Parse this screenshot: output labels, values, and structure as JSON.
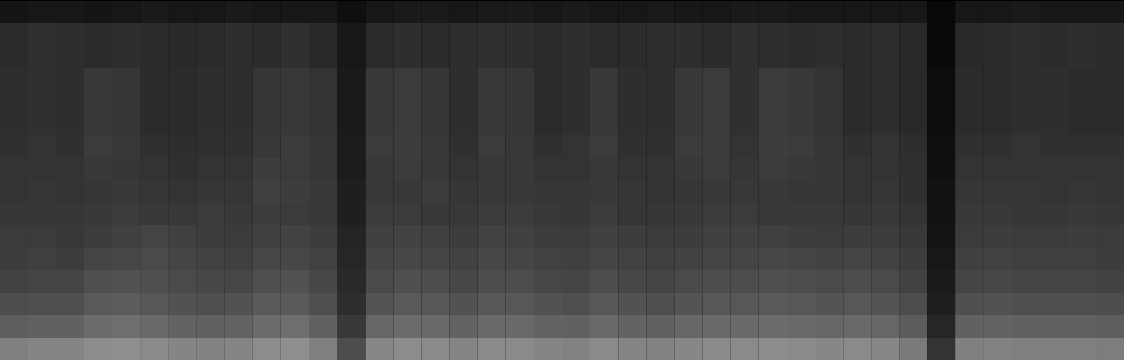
{
  "chart_data": {
    "type": "heatmap",
    "tick_labels": false,
    "zlim": [
      0,
      100
    ],
    "cells": [
      [
        8,
        9,
        9,
        8,
        9,
        10,
        9,
        9,
        10,
        9,
        9,
        9,
        6,
        9,
        10,
        10,
        9,
        10,
        10,
        9,
        10,
        9,
        9,
        10,
        9,
        9,
        10,
        10,
        9,
        9,
        9,
        9,
        9,
        3,
        9,
        9,
        10,
        9,
        9,
        9
      ],
      [
        17,
        19,
        18,
        17,
        18,
        17,
        16,
        17,
        18,
        17,
        19,
        16,
        9,
        17,
        18,
        17,
        18,
        19,
        18,
        17,
        18,
        17,
        17,
        18,
        18,
        17,
        19,
        18,
        17,
        18,
        17,
        18,
        16,
        4,
        16,
        17,
        18,
        17,
        18,
        17
      ],
      [
        17,
        19,
        18,
        17,
        18,
        17,
        16,
        17,
        18,
        17,
        19,
        16,
        9,
        17,
        18,
        17,
        18,
        19,
        18,
        17,
        18,
        17,
        17,
        18,
        18,
        17,
        19,
        18,
        17,
        18,
        17,
        18,
        16,
        4,
        16,
        17,
        18,
        17,
        18,
        17
      ],
      [
        18,
        19,
        18,
        22,
        21,
        17,
        17,
        18,
        18,
        21,
        22,
        20,
        10,
        22,
        23,
        21,
        18,
        22,
        21,
        17,
        18,
        22,
        18,
        18,
        22,
        23,
        19,
        23,
        22,
        20,
        17,
        18,
        16,
        5,
        17,
        17,
        18,
        18,
        17,
        17
      ],
      [
        18,
        19,
        18,
        22,
        21,
        17,
        17,
        18,
        18,
        21,
        22,
        20,
        10,
        22,
        23,
        21,
        18,
        22,
        21,
        17,
        18,
        22,
        18,
        18,
        22,
        23,
        19,
        23,
        22,
        20,
        17,
        18,
        16,
        5,
        17,
        17,
        18,
        18,
        17,
        17
      ],
      [
        18,
        19,
        18,
        22,
        21,
        17,
        17,
        18,
        18,
        21,
        22,
        20,
        10,
        22,
        23,
        21,
        18,
        22,
        21,
        17,
        18,
        22,
        18,
        18,
        22,
        23,
        19,
        23,
        22,
        20,
        17,
        18,
        16,
        5,
        17,
        17,
        18,
        18,
        17,
        17
      ],
      [
        19,
        20,
        19,
        23,
        22,
        19,
        18,
        19,
        19,
        22,
        23,
        21,
        11,
        23,
        24,
        22,
        19,
        23,
        22,
        19,
        20,
        23,
        19,
        19,
        23,
        24,
        20,
        24,
        23,
        21,
        19,
        20,
        18,
        6,
        19,
        19,
        20,
        19,
        19,
        19
      ],
      [
        20,
        20,
        20,
        22,
        21,
        20,
        19,
        20,
        20,
        24,
        23,
        21,
        11,
        22,
        23,
        22,
        20,
        22,
        22,
        20,
        20,
        22,
        20,
        20,
        22,
        23,
        21,
        23,
        22,
        21,
        20,
        20,
        19,
        6,
        20,
        20,
        20,
        20,
        20,
        20
      ],
      [
        20,
        21,
        20,
        21,
        22,
        21,
        20,
        21,
        21,
        25,
        24,
        22,
        12,
        22,
        22,
        23,
        21,
        22,
        22,
        21,
        21,
        22,
        21,
        20,
        21,
        22,
        22,
        22,
        21,
        21,
        20,
        21,
        19,
        7,
        21,
        21,
        21,
        20,
        21,
        20
      ],
      [
        21,
        21,
        21,
        22,
        23,
        22,
        22,
        23,
        22,
        24,
        23,
        22,
        12,
        23,
        23,
        22,
        22,
        23,
        23,
        22,
        21,
        23,
        21,
        21,
        22,
        23,
        23,
        22,
        22,
        22,
        21,
        22,
        20,
        7,
        22,
        22,
        21,
        21,
        22,
        21
      ],
      [
        23,
        23,
        22,
        24,
        25,
        27,
        25,
        24,
        23,
        25,
        26,
        24,
        14,
        25,
        26,
        25,
        24,
        26,
        25,
        24,
        23,
        25,
        24,
        23,
        24,
        25,
        25,
        25,
        24,
        23,
        24,
        24,
        22,
        8,
        23,
        24,
        23,
        23,
        24,
        23
      ],
      [
        24,
        25,
        24,
        27,
        28,
        29,
        27,
        26,
        25,
        28,
        28,
        26,
        15,
        27,
        28,
        27,
        26,
        28,
        27,
        26,
        25,
        27,
        26,
        25,
        26,
        27,
        27,
        28,
        27,
        26,
        27,
        26,
        24,
        9,
        25,
        26,
        25,
        25,
        25,
        24
      ],
      [
        26,
        27,
        27,
        31,
        32,
        31,
        29,
        28,
        28,
        31,
        32,
        28,
        16,
        29,
        31,
        30,
        28,
        30,
        30,
        28,
        27,
        30,
        28,
        27,
        29,
        30,
        30,
        31,
        30,
        29,
        30,
        29,
        26,
        10,
        27,
        28,
        27,
        27,
        27,
        26
      ],
      [
        30,
        31,
        31,
        35,
        36,
        34,
        32,
        31,
        32,
        35,
        35,
        31,
        18,
        33,
        35,
        34,
        32,
        34,
        34,
        32,
        31,
        34,
        32,
        31,
        33,
        34,
        34,
        35,
        34,
        33,
        34,
        33,
        30,
        12,
        31,
        32,
        31,
        31,
        31,
        30
      ],
      [
        37,
        38,
        38,
        42,
        43,
        41,
        39,
        38,
        39,
        42,
        43,
        38,
        22,
        40,
        42,
        41,
        39,
        41,
        41,
        39,
        38,
        41,
        39,
        38,
        40,
        41,
        41,
        42,
        41,
        40,
        41,
        40,
        36,
        15,
        38,
        39,
        38,
        38,
        38,
        37
      ],
      [
        50,
        52,
        52,
        55,
        56,
        54,
        52,
        51,
        52,
        55,
        56,
        50,
        30,
        53,
        55,
        54,
        52,
        54,
        54,
        52,
        51,
        54,
        52,
        51,
        53,
        54,
        54,
        55,
        54,
        53,
        54,
        53,
        48,
        20,
        50,
        51,
        50,
        50,
        50,
        49
      ]
    ]
  }
}
